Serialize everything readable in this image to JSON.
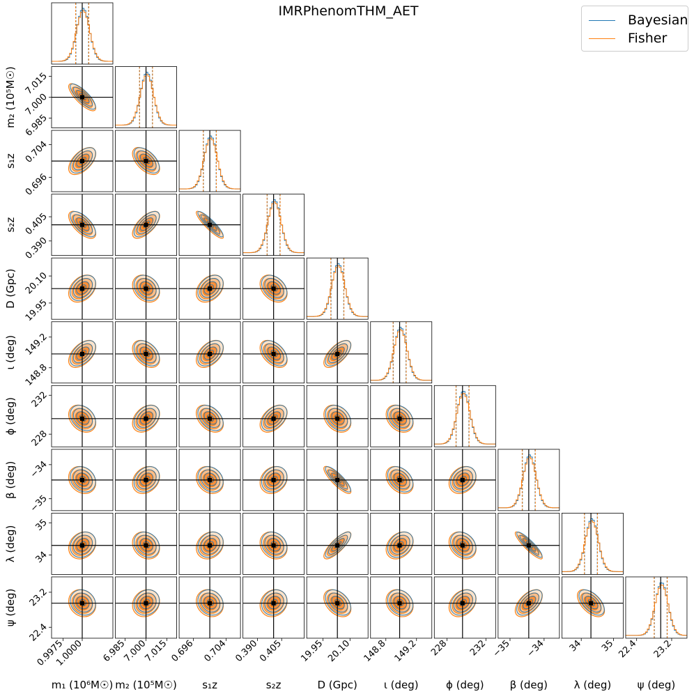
{
  "chart_data": {
    "type": "corner",
    "title": "IMRPhenomTHM_AET",
    "legend": [
      {
        "name": "Bayesian",
        "color": "#1f77b4"
      },
      {
        "name": "Fisher",
        "color": "#ff7f0e"
      }
    ],
    "legend_position": "top-right",
    "truth_line_color": "#000000",
    "parameters": [
      {
        "label": "m₁ (10⁶M☉)",
        "symbol": "m1",
        "truth": 1.0,
        "range": [
          0.996,
          1.004
        ],
        "ticks": [
          0.9975,
          1.0
        ],
        "tick_labels": [
          "0.9975",
          "1.0000"
        ]
      },
      {
        "label": "m₂ (10⁵M☉)",
        "symbol": "m2",
        "truth": 7.0,
        "range": [
          6.978,
          7.022
        ],
        "ticks": [
          6.985,
          7.0,
          7.015
        ],
        "tick_labels": [
          "6.985",
          "7.000",
          "7.015"
        ]
      },
      {
        "label": "s₁z",
        "symbol": "s1z",
        "truth": 0.7,
        "range": [
          0.6925,
          0.7075
        ],
        "ticks": [
          0.696,
          0.704
        ],
        "tick_labels": [
          "0.696",
          "0.704"
        ]
      },
      {
        "label": "s₂z",
        "symbol": "s2z",
        "truth": 0.4,
        "range": [
          0.381,
          0.419
        ],
        "ticks": [
          0.39,
          0.405
        ],
        "tick_labels": [
          "0.390",
          "0.405"
        ]
      },
      {
        "label": "D (Gpc)",
        "symbol": "D",
        "truth": 20.03,
        "range": [
          19.86,
          20.2
        ],
        "ticks": [
          19.95,
          20.1
        ],
        "tick_labels": [
          "19.95",
          "20.10"
        ]
      },
      {
        "label": "ι (deg)",
        "symbol": "iota",
        "truth": 148.98,
        "range": [
          148.6,
          149.4
        ],
        "ticks": [
          148.8,
          149.2
        ],
        "tick_labels": [
          "148.8",
          "149.2"
        ]
      },
      {
        "label": "ϕ (deg)",
        "symbol": "phi",
        "truth": 229.6,
        "range": [
          226.7,
          233.0
        ],
        "ticks": [
          228,
          232
        ],
        "tick_labels": [
          "228",
          "232"
        ]
      },
      {
        "label": "β (deg)",
        "symbol": "beta",
        "truth": -34.45,
        "range": [
          -35.35,
          -33.55
        ],
        "ticks": [
          -35,
          -34
        ],
        "tick_labels": [
          "−35",
          "−34"
        ]
      },
      {
        "label": "λ (deg)",
        "symbol": "lambda",
        "truth": 34.3,
        "range": [
          33.4,
          35.3
        ],
        "ticks": [
          34,
          35
        ],
        "tick_labels": [
          "34",
          "35"
        ]
      },
      {
        "label": "ψ (deg)",
        "symbol": "psi",
        "truth": 22.95,
        "range": [
          22.15,
          23.55
        ],
        "ticks": [
          22.4,
          23.2
        ],
        "tick_labels": [
          "22.4",
          "23.2"
        ]
      }
    ],
    "correlations": [
      [
        1,
        0,
        -0.8
      ],
      [
        2,
        0,
        0.55
      ],
      [
        2,
        1,
        -0.55
      ],
      [
        3,
        0,
        -0.65
      ],
      [
        3,
        1,
        0.65
      ],
      [
        3,
        2,
        -0.9
      ],
      [
        4,
        0,
        0.35
      ],
      [
        4,
        1,
        -0.25
      ],
      [
        4,
        2,
        0.35
      ],
      [
        4,
        3,
        -0.35
      ],
      [
        5,
        0,
        0.5
      ],
      [
        5,
        1,
        -0.4
      ],
      [
        5,
        2,
        0.45
      ],
      [
        5,
        3,
        -0.45
      ],
      [
        5,
        4,
        0.65
      ],
      [
        6,
        0,
        -0.3
      ],
      [
        6,
        1,
        0.35
      ],
      [
        6,
        2,
        -0.4
      ],
      [
        6,
        3,
        0.45
      ],
      [
        6,
        4,
        -0.3
      ],
      [
        6,
        5,
        -0.3
      ],
      [
        7,
        0,
        -0.2
      ],
      [
        7,
        1,
        0.25
      ],
      [
        7,
        2,
        -0.2
      ],
      [
        7,
        3,
        0.2
      ],
      [
        7,
        4,
        -0.85
      ],
      [
        7,
        5,
        -0.35
      ],
      [
        7,
        6,
        0.25
      ],
      [
        8,
        0,
        0.2
      ],
      [
        8,
        1,
        -0.2
      ],
      [
        8,
        2,
        0.2
      ],
      [
        8,
        3,
        -0.2
      ],
      [
        8,
        4,
        0.8
      ],
      [
        8,
        5,
        0.3
      ],
      [
        8,
        6,
        -0.25
      ],
      [
        8,
        7,
        -0.9
      ],
      [
        9,
        0,
        -0.15
      ],
      [
        9,
        1,
        0.15
      ],
      [
        9,
        2,
        -0.15
      ],
      [
        9,
        3,
        0.15
      ],
      [
        9,
        4,
        -0.4
      ],
      [
        9,
        5,
        -0.2
      ],
      [
        9,
        6,
        0.3
      ],
      [
        9,
        7,
        0.55
      ],
      [
        9,
        8,
        -0.55
      ]
    ],
    "credible_levels": [
      0.5,
      1.0,
      1.5,
      2.0
    ],
    "fill_colors": [
      "#fde3cb",
      "#fbbe8a",
      "#f8913e",
      "#ee7410"
    ]
  }
}
